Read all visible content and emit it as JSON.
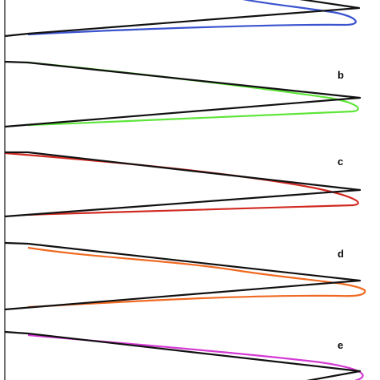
{
  "figure": {
    "reference_color": "#111111",
    "panels": [
      {
        "label": "",
        "color": "#3a53cf",
        "trace": "blue"
      },
      {
        "label": "b",
        "color": "#5ee53a",
        "trace": "green"
      },
      {
        "label": "c",
        "color": "#d12a22",
        "trace": "red"
      },
      {
        "label": "d",
        "color": "#f06a22",
        "trace": "orange"
      },
      {
        "label": "e",
        "color": "#d43bd4",
        "trace": "magenta"
      }
    ]
  }
}
